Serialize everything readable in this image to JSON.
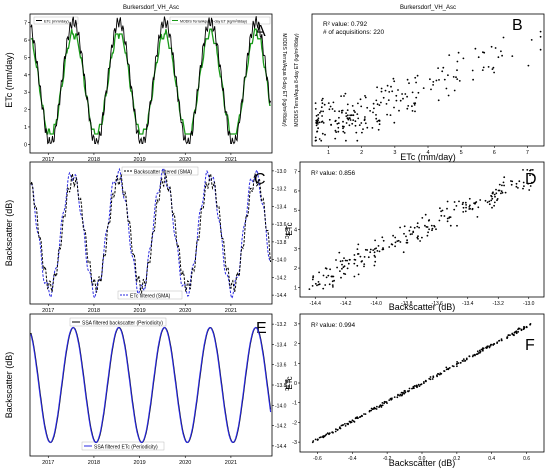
{
  "figure": {
    "panels": [
      {
        "id": "A",
        "title": "Burkersdorf_VH_Asc",
        "ylabel": "ETc (mm/day)",
        "y2label": "MODIS Terra/Aqua 8-day ET (kg/m²/8day)",
        "legend": [
          "ETc (mm/day)",
          "MODIS Terra/Aqua 8-day ET (kg/m²/8day)"
        ],
        "xticks": [
          "2017",
          "2018",
          "2019",
          "2020",
          "2021"
        ],
        "yticks": [
          "0",
          "1",
          "2",
          "3",
          "4",
          "5",
          "6",
          "7"
        ]
      },
      {
        "id": "B",
        "title": "Burkersdorf_VH_Asc",
        "xlabel": "ETc (mm/day)",
        "ylabel": "MODIS Terra/Aqua 8-day ET (kg/m²/8day)",
        "annotation": [
          "R² value: 0.792",
          "# of acquisitions: 220"
        ],
        "xticks": [
          "1",
          "2",
          "3",
          "4",
          "5",
          "6",
          "7"
        ]
      },
      {
        "id": "C",
        "ylabel": "Backscatter (dB)",
        "y2label": "ETc",
        "legend": [
          "Backscatter filtered (SMA)",
          "ETc filtered (SMA)"
        ],
        "xticks": [
          "2017",
          "2018",
          "2019",
          "2020",
          "2021"
        ],
        "yticks": [
          "-13.0",
          "-13.2",
          "-13.4",
          "-13.6",
          "-13.8",
          "-14.0",
          "-14.2",
          "-14.4"
        ]
      },
      {
        "id": "D",
        "xlabel": "Backscatter (dB)",
        "ylabel": "ETc",
        "annotation": [
          "R² value: 0.856"
        ],
        "xticks": [
          "-14.4",
          "-14.2",
          "-14.0",
          "-13.8",
          "-13.6",
          "-13.4",
          "-13.2",
          "-13.0"
        ],
        "yticks": [
          "1",
          "2",
          "3",
          "4",
          "5",
          "6",
          "7"
        ]
      },
      {
        "id": "E",
        "ylabel": "Backscatter (dB)",
        "y2label": "ETc",
        "legend": [
          "SSA filtered backscatter (Periodicity)",
          "SSA filtered ETc (Periodicity)"
        ],
        "xticks": [
          "2017",
          "2018",
          "2019",
          "2020",
          "2021"
        ],
        "yticks": [
          "-13.2",
          "-13.4",
          "-13.6",
          "-13.8",
          "-14.0",
          "-14.2",
          "-14.4"
        ]
      },
      {
        "id": "F",
        "xlabel": "Backscatter (dB)",
        "ylabel": "ETc",
        "annotation": [
          "R² value: 0.994"
        ],
        "xticks": [
          "-0.6",
          "-0.4",
          "-0.2",
          "0.0",
          "0.2",
          "0.4",
          "0.6"
        ],
        "yticks": [
          "-3",
          "-2",
          "-1",
          "0",
          "1",
          "2",
          "3"
        ]
      }
    ]
  },
  "chart_data": [
    {
      "type": "line",
      "panel": "A",
      "x_years": [
        2016.6,
        2021.9
      ],
      "ylim": [
        0,
        7
      ],
      "series": [
        {
          "name": "ETc (mm/day)",
          "color": "#000000"
        },
        {
          "name": "MODIS Terra/Aqua 8-day ET (kg/m²/8day)",
          "color": "#1a9a1a"
        }
      ],
      "peaks_years": [
        2017.5,
        2018.5,
        2019.5,
        2020.5,
        2021.5
      ]
    },
    {
      "type": "scatter",
      "panel": "B",
      "xlim": [
        0.6,
        7.4
      ],
      "ylim": [
        0,
        50
      ],
      "r2": 0.792,
      "n": 220
    },
    {
      "type": "line",
      "panel": "C",
      "x_years": [
        2016.6,
        2021.9
      ],
      "ylim": [
        -14.5,
        -12.95
      ],
      "series": [
        {
          "name": "Backscatter filtered (SMA)",
          "color": "#000000",
          "style": "dashed"
        },
        {
          "name": "ETc filtered (SMA)",
          "color": "#2a2ae0",
          "style": "dashed"
        }
      ]
    },
    {
      "type": "scatter",
      "panel": "D",
      "xlim": [
        -14.55,
        -12.95
      ],
      "ylim": [
        0.5,
        7.3
      ],
      "r2": 0.856
    },
    {
      "type": "line",
      "panel": "E",
      "x_years": [
        2016.6,
        2021.9
      ],
      "ylim": [
        -14.5,
        -13.1
      ],
      "series": [
        {
          "name": "SSA filtered backscatter (Periodicity)",
          "color": "#000000"
        },
        {
          "name": "SSA filtered ETc (Periodicity)",
          "color": "#2a2ae0"
        }
      ]
    },
    {
      "type": "scatter",
      "panel": "F",
      "xlim": [
        -0.65,
        0.65
      ],
      "ylim": [
        -3.3,
        3.2
      ],
      "r2": 0.994
    }
  ]
}
